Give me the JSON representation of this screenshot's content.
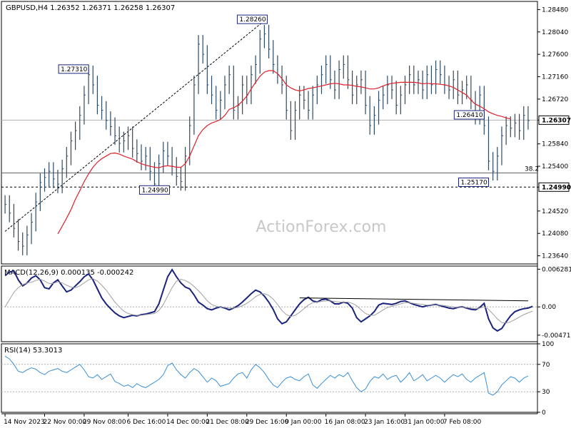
{
  "chart_data": [
    {
      "type": "line",
      "panel": "price",
      "header": "GBPUSD,H4  1.26352 1.26371 1.26258 1.26307",
      "watermark": "ActionForex.com",
      "ylim": [
        1.2348,
        1.2864
      ],
      "y_ticks": [
        "1.28480",
        "1.28040",
        "1.27600",
        "1.27160",
        "1.26720",
        "1.26307",
        "1.25840",
        "1.25400",
        "1.24990",
        "1.24520",
        "1.24080",
        "1.23640"
      ],
      "current_price": "1.26307",
      "support_level": "1.24990",
      "fib_level": {
        "value": 1.2527,
        "label": "38.2"
      },
      "annotations": [
        {
          "label": "1.27310",
          "date_index": 19,
          "value": 1.2731
        },
        {
          "label": "1.24990",
          "date_index": 34,
          "value": 1.2499
        },
        {
          "label": "1.28260",
          "date_index": 59,
          "value": 1.2826
        },
        {
          "label": "1.25170",
          "date_index": 110,
          "value": 1.2517
        },
        {
          "label": "1.26410",
          "date_index": 109,
          "value": 1.2641
        }
      ],
      "trend_line": [
        {
          "date_index": 0,
          "value": 1.2412
        },
        {
          "date_index": 59,
          "value": 1.2826
        }
      ],
      "series": [
        {
          "name": "close",
          "color": "#2e4a63",
          "values": [
            1.2465,
            1.2448,
            1.2418,
            1.2392,
            1.2383,
            1.2405,
            1.243,
            1.247,
            1.2508,
            1.2518,
            1.253,
            1.2515,
            1.2505,
            1.2535,
            1.256,
            1.259,
            1.261,
            1.264,
            1.268,
            1.272,
            1.27,
            1.266,
            1.265,
            1.263,
            1.2618,
            1.26,
            1.2585,
            1.259,
            1.26,
            1.2575,
            1.2565,
            1.255,
            1.256,
            1.253,
            1.2505,
            1.2545,
            1.257,
            1.256,
            1.254,
            1.252,
            1.251,
            1.256,
            1.262,
            1.27,
            1.278,
            1.276,
            1.27,
            1.268,
            1.265,
            1.267,
            1.27,
            1.272,
            1.265,
            1.266,
            1.27,
            1.268,
            1.272,
            1.274,
            1.279,
            1.28,
            1.277,
            1.274,
            1.272,
            1.27,
            1.265,
            1.261,
            1.265,
            1.268,
            1.267,
            1.265,
            1.268,
            1.27,
            1.272,
            1.274,
            1.271,
            1.269,
            1.273,
            1.274,
            1.271,
            1.268,
            1.27,
            1.271,
            1.266,
            1.262,
            1.264,
            1.267,
            1.268,
            1.27,
            1.269,
            1.266,
            1.268,
            1.27,
            1.272,
            1.27,
            1.271,
            1.269,
            1.272,
            1.27,
            1.273,
            1.272,
            1.27,
            1.269,
            1.271,
            1.268,
            1.269,
            1.27,
            1.267,
            1.264,
            1.268,
            1.262,
            1.255,
            1.253,
            1.256,
            1.26,
            1.262,
            1.2615,
            1.2625,
            1.261,
            1.264,
            1.263
          ]
        },
        {
          "name": "ma",
          "color": "#e0202a",
          "values": [
            null,
            null,
            null,
            null,
            null,
            null,
            null,
            null,
            null,
            null,
            null,
            null,
            1.2407,
            1.2422,
            1.2438,
            1.2455,
            1.2475,
            1.2492,
            1.251,
            1.2525,
            1.2538,
            1.2548,
            1.2555,
            1.256,
            1.2565,
            1.2566,
            1.2564,
            1.256,
            1.2557,
            1.2554,
            1.2549,
            1.2545,
            1.2542,
            1.254,
            1.2538,
            1.2537,
            1.254,
            1.2541,
            1.254,
            1.2538,
            1.2538,
            1.2545,
            1.256,
            1.258,
            1.26,
            1.2612,
            1.262,
            1.2625,
            1.2628,
            1.2632,
            1.264,
            1.2652,
            1.2655,
            1.266,
            1.2668,
            1.2678,
            1.2692,
            1.2705,
            1.2717,
            1.2725,
            1.2728,
            1.2728,
            1.2722,
            1.2712,
            1.27,
            1.2694,
            1.269,
            1.2688,
            1.269,
            1.2693,
            1.2694,
            1.2696,
            1.2698,
            1.27,
            1.2702,
            1.2703,
            1.2702,
            1.27,
            1.27,
            1.2699,
            1.2697,
            1.2696,
            1.2694,
            1.2692,
            1.2692,
            1.2694,
            1.2698,
            1.2701,
            1.2703,
            1.2704,
            1.2705,
            1.2705,
            1.2705,
            1.2705,
            1.2704,
            1.2702,
            1.2703,
            1.2702,
            1.2702,
            1.2701,
            1.27,
            1.2698,
            1.2695,
            1.269,
            1.2685,
            1.268,
            1.267,
            1.2662,
            1.2658,
            1.2653,
            1.2647,
            1.2643,
            1.264,
            1.2638,
            1.2635,
            1.2633
          ]
        }
      ]
    },
    {
      "type": "line",
      "panel": "macd",
      "header": "MACD(12,26,9) 0.000135 -0.000242",
      "ylim": [
        -0.0058,
        0.0068
      ],
      "y_ticks": [
        "0.006281",
        "0.00",
        "-0.004711"
      ],
      "series": [
        {
          "name": "MACD",
          "color": "#1a237e",
          "values": [
            0.0052,
            0.0058,
            0.006,
            0.0045,
            0.0035,
            0.004,
            0.0048,
            0.0052,
            0.0045,
            0.0032,
            0.003,
            0.004,
            0.0045,
            0.0035,
            0.0025,
            0.0028,
            0.0035,
            0.0042,
            0.005,
            0.0055,
            0.0045,
            0.003,
            0.0015,
            0.0005,
            -0.0003,
            -0.001,
            -0.0015,
            -0.0018,
            -0.0016,
            -0.0014,
            -0.0015,
            -0.0013,
            -0.0012,
            -0.001,
            -0.0008,
            0.0005,
            0.0028,
            0.005,
            0.0062,
            0.005,
            0.004,
            0.0033,
            0.003,
            0.002,
            0.0008,
            0.0003,
            -0.0003,
            -0.0005,
            -0.0002,
            0.0,
            -0.0002,
            -0.0005,
            -0.0002,
            0.0002,
            0.0008,
            0.0015,
            0.0022,
            0.0028,
            0.0025,
            0.0018,
            0.0008,
            -0.0004,
            -0.002,
            -0.0028,
            -0.0025,
            -0.0015,
            -0.0005,
            0.0005,
            0.0012,
            0.0016,
            0.001,
            0.0008,
            0.0012,
            0.0013,
            0.001,
            0.0005,
            0.0005,
            0.0008,
            0.0006,
            -0.0002,
            -0.0018,
            -0.0025,
            -0.002,
            -0.0015,
            -0.0008,
            0.0003,
            0.0006,
            0.0005,
            0.0004,
            0.0006,
            0.0009,
            0.001,
            0.0007,
            0.0004,
            0.0002,
            0.0,
            0.0002,
            0.0003,
            0.0004,
            0.0002,
            0.0,
            -0.0002,
            -0.0003,
            -0.0001,
            0.0,
            -0.0002,
            -0.0004,
            -0.0005,
            -0.0001,
            0.0006,
            -0.002,
            -0.0035,
            -0.004,
            -0.0036,
            -0.0025,
            -0.0015,
            -0.0008,
            -0.0005,
            -0.0003,
            -0.0002,
            0.0001
          ]
        },
        {
          "name": "Signal",
          "color": "#a0a0a0",
          "values": [
            0.0,
            0.0012,
            0.0024,
            0.0032,
            0.0037,
            0.004,
            0.0041,
            0.0044,
            0.0046,
            0.0043,
            0.0039,
            0.0039,
            0.0042,
            0.004,
            0.0036,
            0.0033,
            0.0032,
            0.0035,
            0.004,
            0.0045,
            0.0047,
            0.0043,
            0.0036,
            0.0028,
            0.0018,
            0.0008,
            0.0,
            -0.0007,
            -0.0011,
            -0.0013,
            -0.0014,
            -0.0014,
            -0.0013,
            -0.0012,
            -0.0011,
            -0.0006,
            0.0004,
            0.0018,
            0.0032,
            0.0043,
            0.0046,
            0.0044,
            0.004,
            0.0034,
            0.0027,
            0.0019,
            0.001,
            0.0004,
            0.0001,
            0.0,
            -0.0001,
            -0.0002,
            -0.0002,
            -0.0001,
            0.0002,
            0.0006,
            0.0011,
            0.0017,
            0.0021,
            0.0022,
            0.0019,
            0.0013,
            0.0004,
            -0.0006,
            -0.0013,
            -0.0016,
            -0.0014,
            -0.0009,
            -0.0003,
            0.0003,
            0.0007,
            0.0008,
            0.0009,
            0.001,
            0.001,
            0.0009,
            0.0008,
            0.0008,
            0.0008,
            0.0006,
            0.0002,
            -0.0005,
            -0.0011,
            -0.0014,
            -0.0014,
            -0.001,
            -0.0005,
            -0.0001,
            0.0001,
            0.0003,
            0.0005,
            0.0007,
            0.0007,
            0.0006,
            0.0005,
            0.0004,
            0.0003,
            0.0003,
            0.0003,
            0.0003,
            0.0002,
            0.0001,
            0.0,
            -0.0001,
            -0.0001,
            -0.0001,
            -0.0002,
            -0.0003,
            -0.0002,
            0.0,
            -0.0004,
            -0.0012,
            -0.002,
            -0.0026,
            -0.0027,
            -0.0025,
            -0.0021,
            -0.0017,
            -0.0013,
            -0.001,
            -0.0007
          ]
        }
      ],
      "trend_line": [
        {
          "date_index": 67,
          "value": 0.0015
        },
        {
          "date_index": 119,
          "value": 0.001
        }
      ]
    },
    {
      "type": "line",
      "panel": "rsi",
      "header": "RSI(14) 53.3013",
      "ylim": [
        0,
        100
      ],
      "y_ticks": [
        "100",
        "70",
        "30",
        "0"
      ],
      "levels": [
        70,
        30
      ],
      "series": [
        {
          "name": "RSI(14)",
          "color": "#3a8fd6",
          "values": [
            82,
            78,
            70,
            60,
            58,
            62,
            65,
            63,
            58,
            55,
            60,
            62,
            64,
            60,
            58,
            62,
            66,
            70,
            62,
            52,
            50,
            55,
            48,
            52,
            56,
            45,
            42,
            38,
            40,
            36,
            42,
            38,
            36,
            40,
            44,
            48,
            55,
            68,
            72,
            62,
            55,
            50,
            58,
            64,
            60,
            52,
            44,
            50,
            46,
            38,
            40,
            42,
            50,
            56,
            58,
            50,
            62,
            70,
            65,
            58,
            48,
            40,
            36,
            44,
            50,
            52,
            48,
            46,
            52,
            56,
            40,
            35,
            42,
            48,
            54,
            50,
            55,
            52,
            58,
            46,
            36,
            30,
            34,
            45,
            52,
            50,
            56,
            48,
            52,
            54,
            44,
            50,
            58,
            46,
            50,
            55,
            46,
            50,
            54,
            50,
            44,
            50,
            55,
            52,
            56,
            48,
            44,
            50,
            54,
            58,
            28,
            25,
            30,
            40,
            46,
            52,
            50,
            44,
            50,
            53
          ]
        }
      ]
    }
  ],
  "x_ticks": [
    {
      "label": "14 Nov 2023",
      "date_index": 0
    },
    {
      "label": "22 Nov 00:00",
      "date_index": 9
    },
    {
      "label": "29 Nov 08:00",
      "date_index": 18
    },
    {
      "label": "6 Dec 16:00",
      "date_index": 28
    },
    {
      "label": "14 Dec 00:00",
      "date_index": 37
    },
    {
      "label": "21 Dec 08:00",
      "date_index": 46
    },
    {
      "label": "29 Dec 16:00",
      "date_index": 55
    },
    {
      "label": "9 Jan 00:00",
      "date_index": 64
    },
    {
      "label": "16 Jan 08:00",
      "date_index": 73
    },
    {
      "label": "23 Jan 16:00",
      "date_index": 82
    },
    {
      "label": "31 Jan 00:00",
      "date_index": 91
    },
    {
      "label": "7 Feb 08:00",
      "date_index": 100
    }
  ]
}
